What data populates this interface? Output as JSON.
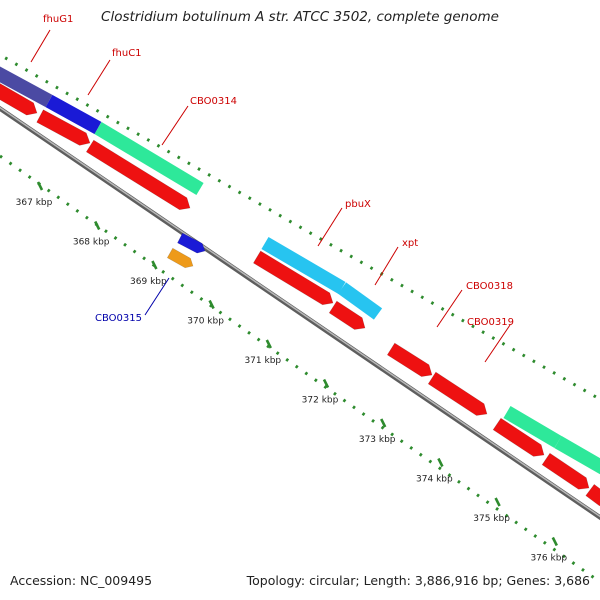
{
  "title": "Clostridium botulinum A str. ATCC 3502, complete genome",
  "footer": {
    "accession": "Accession: NC_009495",
    "summary": "Topology: circular; Length: 3,886,916 bp; Genes: 3,686"
  },
  "colors": {
    "cds": "#ee1111",
    "backbone": "#8a8a8a",
    "ruler": "#2e8b2e",
    "gene_label": "#cc0000",
    "rna_label": "#0000aa"
  },
  "ticks": [
    "367 kbp",
    "368 kbp",
    "369 kbp",
    "370 kbp",
    "371 kbp",
    "372 kbp",
    "373 kbp",
    "374 kbp",
    "375 kbp",
    "376 kbp"
  ],
  "genes": [
    {
      "label": "fhuG1",
      "color": "#4b4aa3"
    },
    {
      "label": "fhuC1",
      "color": "#1a1ad6"
    },
    {
      "label": "CBO0314",
      "color": "#2ee89a"
    },
    {
      "label": "pbuX",
      "color": "#27c4f0"
    },
    {
      "label": "xpt",
      "color": "#27c4f0"
    },
    {
      "label": "CBO0318",
      "color": "#ee1111"
    },
    {
      "label": "CBO0319",
      "color": "#2ee89a"
    },
    {
      "label": "CBO0315",
      "color": "#1a1ad6"
    }
  ],
  "rna": {
    "color": "#ee9a1a"
  }
}
